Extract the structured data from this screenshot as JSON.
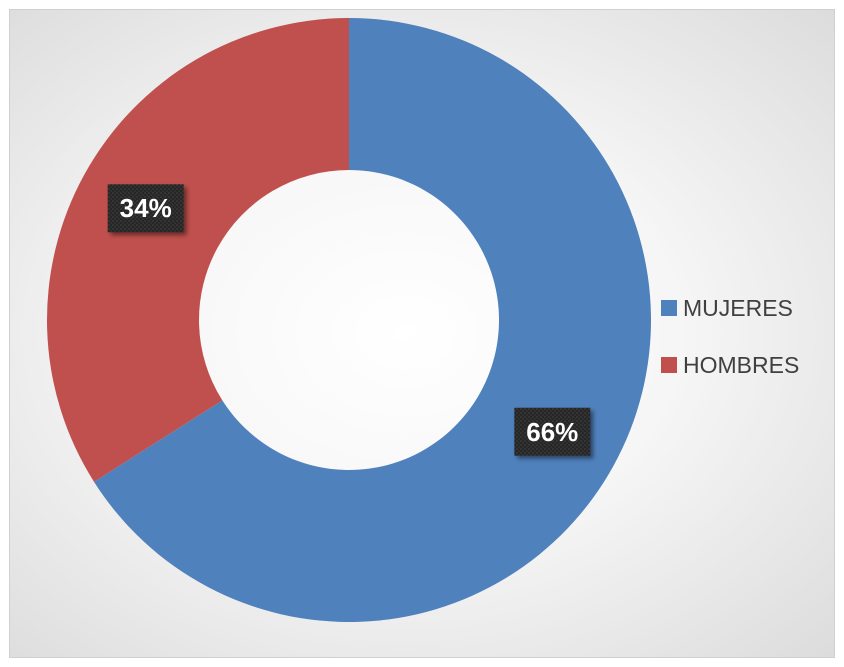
{
  "chart_data": {
    "type": "pie",
    "variant": "donut",
    "title": "",
    "categories": [
      "MUJERES",
      "HOMBRES"
    ],
    "values": [
      66,
      34
    ],
    "value_labels": [
      "66%",
      "34%"
    ],
    "colors": [
      "#4f81bd",
      "#c0504d"
    ],
    "legend": {
      "placement": "right",
      "entries": [
        "MUJERES",
        "HOMBRES"
      ]
    },
    "start_angle_deg": 0,
    "direction": "clockwise"
  }
}
